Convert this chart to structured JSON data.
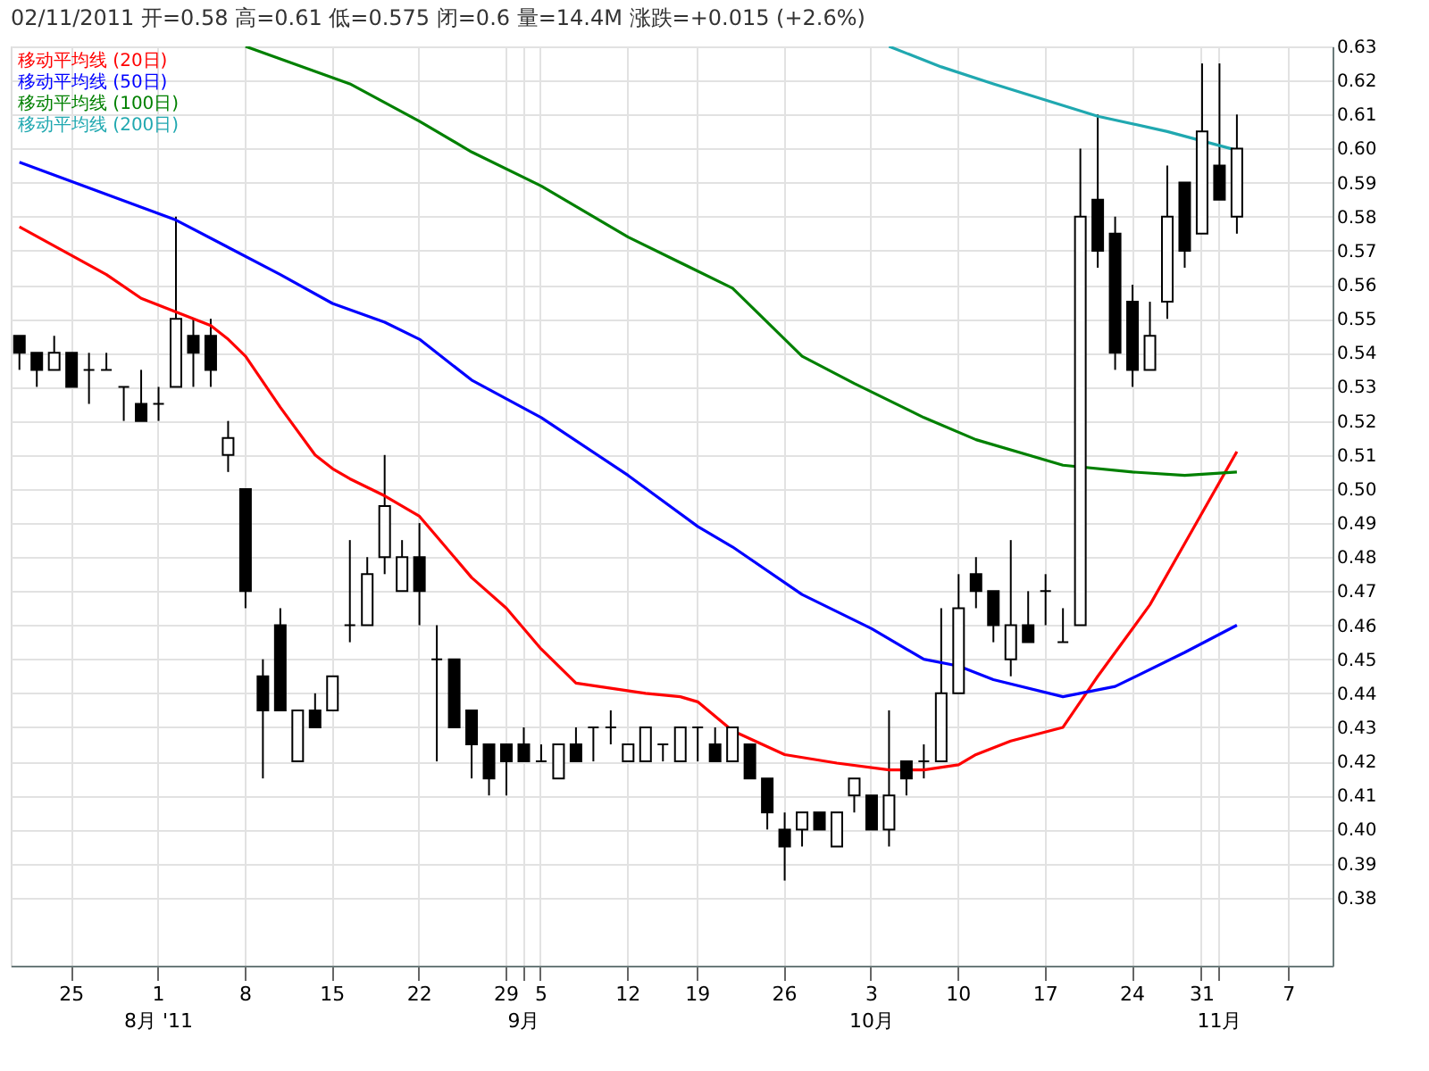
{
  "chart_data": {
    "type": "candlestick",
    "subtitle": "02/11/2011      开=0.58      高=0.61      低=0.575     闭=0.6      量=14.4M     涨跌=+0.015 (+2.6%)",
    "categories": [
      null,
      null,
      null,
      "25",
      null,
      null,
      null,
      null,
      "1\n8月 '11",
      null,
      null,
      null,
      null,
      "8",
      null,
      null,
      null,
      null,
      "15",
      null,
      null,
      null,
      null,
      "22",
      null,
      null,
      null,
      null,
      "29",
      "\n9月",
      "5",
      null,
      null,
      null,
      null,
      "12",
      null,
      null,
      null,
      "19",
      null,
      null,
      null,
      null,
      "26",
      null,
      null,
      null,
      null,
      "3\n10月",
      null,
      null,
      null,
      null,
      "10",
      null,
      null,
      null,
      null,
      "17",
      null,
      null,
      null,
      null,
      "24",
      null,
      null,
      null,
      "31",
      "\n11月",
      null,
      null,
      null,
      "7",
      null,
      null
    ],
    "ohlc": [
      [
        0.545,
        0.545,
        0.535,
        0.54
      ],
      [
        0.54,
        0.54,
        0.53,
        0.535
      ],
      [
        0.535,
        0.545,
        0.535,
        0.54
      ],
      [
        0.54,
        0.54,
        0.53,
        0.53
      ],
      [
        0.535,
        0.54,
        0.525,
        0.535
      ],
      [
        0.535,
        0.54,
        0.535,
        0.535
      ],
      [
        0.53,
        0.53,
        0.52,
        0.53
      ],
      [
        0.525,
        0.535,
        0.52,
        0.52
      ],
      [
        0.525,
        0.53,
        0.52,
        0.525
      ],
      [
        0.53,
        0.58,
        0.53,
        0.55
      ],
      [
        0.545,
        0.55,
        0.53,
        0.54
      ],
      [
        0.545,
        0.55,
        0.53,
        0.535
      ],
      [
        0.51,
        0.52,
        0.505,
        0.515
      ],
      [
        0.5,
        0.5,
        0.465,
        0.47
      ],
      [
        0.445,
        0.45,
        0.415,
        0.435
      ],
      [
        0.46,
        0.465,
        0.435,
        0.435
      ],
      [
        0.42,
        0.435,
        0.42,
        0.435
      ],
      [
        0.435,
        0.44,
        0.43,
        0.43
      ],
      [
        0.435,
        0.445,
        0.435,
        0.445
      ],
      [
        0.46,
        0.485,
        0.455,
        0.46
      ],
      [
        0.46,
        0.48,
        0.46,
        0.475
      ],
      [
        0.48,
        0.51,
        0.475,
        0.495
      ],
      [
        0.47,
        0.485,
        0.47,
        0.48
      ],
      [
        0.48,
        0.49,
        0.46,
        0.47
      ],
      [
        0.45,
        0.46,
        0.42,
        0.45
      ],
      [
        0.45,
        0.45,
        0.43,
        0.43
      ],
      [
        0.435,
        0.435,
        0.415,
        0.425
      ],
      [
        0.425,
        0.425,
        0.41,
        0.415
      ],
      [
        0.425,
        0.425,
        0.41,
        0.42
      ],
      [
        0.425,
        0.43,
        0.42,
        0.42
      ],
      [
        0.42,
        0.425,
        0.42,
        0.42
      ],
      [
        0.415,
        0.425,
        0.415,
        0.425
      ],
      [
        0.425,
        0.43,
        0.42,
        0.42
      ],
      [
        0.43,
        0.43,
        0.42,
        0.43
      ],
      [
        0.43,
        0.435,
        0.425,
        0.43
      ],
      [
        0.42,
        0.425,
        0.42,
        0.425
      ],
      [
        0.42,
        0.43,
        0.42,
        0.43
      ],
      [
        0.425,
        0.425,
        0.42,
        0.425
      ],
      [
        0.42,
        0.43,
        0.42,
        0.43
      ],
      [
        0.43,
        0.43,
        0.42,
        0.43
      ],
      [
        0.425,
        0.43,
        0.42,
        0.42
      ],
      [
        0.42,
        0.43,
        0.42,
        0.43
      ],
      [
        0.425,
        0.425,
        0.415,
        0.415
      ],
      [
        0.415,
        0.415,
        0.4,
        0.405
      ],
      [
        0.4,
        0.405,
        0.385,
        0.395
      ],
      [
        0.4,
        0.405,
        0.395,
        0.405
      ],
      [
        0.405,
        0.405,
        0.4,
        0.4
      ],
      [
        0.395,
        0.405,
        0.395,
        0.405
      ],
      [
        0.41,
        0.415,
        0.405,
        0.415
      ],
      [
        0.41,
        0.41,
        0.4,
        0.4
      ],
      [
        0.4,
        0.435,
        0.395,
        0.41
      ],
      [
        0.42,
        0.42,
        0.41,
        0.415
      ],
      [
        0.42,
        0.425,
        0.415,
        0.42
      ],
      [
        0.42,
        0.465,
        0.42,
        0.44
      ],
      [
        0.44,
        0.475,
        0.44,
        0.465
      ],
      [
        0.475,
        0.48,
        0.465,
        0.47
      ],
      [
        0.47,
        0.47,
        0.455,
        0.46
      ],
      [
        0.45,
        0.485,
        0.445,
        0.46
      ],
      [
        0.46,
        0.47,
        0.455,
        0.455
      ],
      [
        0.47,
        0.475,
        0.46,
        0.47
      ],
      [
        0.455,
        0.465,
        0.455,
        0.455
      ],
      [
        0.46,
        0.6,
        0.46,
        0.58
      ],
      [
        0.585,
        0.61,
        0.565,
        0.57
      ],
      [
        0.575,
        0.58,
        0.535,
        0.54
      ],
      [
        0.555,
        0.56,
        0.53,
        0.535
      ],
      [
        0.535,
        0.555,
        0.535,
        0.545
      ],
      [
        0.555,
        0.595,
        0.55,
        0.58
      ],
      [
        0.59,
        0.59,
        0.565,
        0.57
      ],
      [
        0.575,
        0.625,
        0.575,
        0.605
      ],
      [
        0.595,
        0.625,
        0.585,
        0.585
      ],
      [
        0.58,
        0.61,
        0.575,
        0.6
      ],
      null,
      null,
      null,
      null,
      null
    ],
    "ylim": [
      0.36,
      0.63
    ],
    "yticks": [
      0.38,
      0.39,
      {
        "value": 0.4,
        "label": "0.40"
      },
      0.41,
      0.42,
      0.43,
      0.44,
      0.45,
      0.46,
      0.47,
      0.48,
      0.49,
      {
        "value": 0.5,
        "label": "0.50"
      },
      0.51,
      0.52,
      0.53,
      0.54,
      0.55,
      0.56,
      0.57,
      0.58,
      0.59,
      {
        "value": 0.6,
        "label": "0.60"
      },
      0.61,
      0.62,
      0.63
    ],
    "grid": true,
    "legend": "top left",
    "series": [
      {
        "name": "移动平均线 (20日)",
        "type": "line",
        "color": "#ff0000",
        "values": [
          0.577,
          null,
          null,
          null,
          null,
          0.563,
          null,
          0.556,
          null,
          0.552,
          null,
          0.548,
          0.544,
          0.539,
          null,
          0.524,
          null,
          0.51,
          0.506,
          0.503,
          null,
          0.498,
          null,
          0.492,
          0.486,
          null,
          0.474,
          null,
          0.465,
          null,
          0.453,
          null,
          0.443,
          null,
          null,
          null,
          0.44,
          null,
          0.439,
          0.4375,
          null,
          0.429,
          null,
          null,
          0.422,
          null,
          null,
          0.4195,
          null,
          null,
          0.4175,
          null,
          0.4175,
          null,
          0.419,
          0.422,
          null,
          0.426,
          null,
          null,
          0.43,
          null,
          0.445,
          null,
          null,
          0.466,
          null,
          0.484,
          null,
          null,
          0.511,
          null,
          null,
          null,
          null,
          null
        ]
      },
      {
        "name": "移动平均线 (50日)",
        "type": "line",
        "color": "#0000ff",
        "values": [
          0.596,
          null,
          null,
          null,
          null,
          null,
          null,
          null,
          null,
          0.579,
          null,
          null,
          null,
          null,
          null,
          0.563,
          null,
          null,
          0.5545,
          null,
          null,
          0.549,
          null,
          0.544,
          null,
          null,
          0.532,
          null,
          null,
          null,
          0.521,
          null,
          null,
          null,
          null,
          0.504,
          null,
          null,
          null,
          0.489,
          null,
          0.483,
          null,
          null,
          null,
          0.469,
          null,
          null,
          null,
          0.459,
          null,
          null,
          0.45,
          null,
          0.448,
          null,
          0.444,
          null,
          null,
          null,
          0.439,
          null,
          null,
          0.442,
          null,
          null,
          null,
          0.452,
          null,
          null,
          0.46,
          null,
          null,
          null,
          null,
          null
        ]
      },
      {
        "name": "移动平均线 (100日)",
        "type": "line",
        "color": "#008000",
        "values": [
          null,
          null,
          null,
          null,
          null,
          null,
          null,
          null,
          null,
          null,
          null,
          null,
          null,
          0.63,
          null,
          null,
          0.6245,
          null,
          null,
          0.619,
          null,
          null,
          null,
          0.608,
          null,
          null,
          0.599,
          null,
          null,
          null,
          0.589,
          null,
          null,
          null,
          null,
          0.574,
          null,
          null,
          null,
          null,
          null,
          0.559,
          null,
          null,
          null,
          0.539,
          null,
          null,
          0.531,
          null,
          null,
          null,
          0.521,
          null,
          null,
          0.5145,
          null,
          null,
          null,
          null,
          0.507,
          null,
          null,
          null,
          0.505,
          null,
          null,
          0.504,
          null,
          null,
          0.505,
          null,
          null,
          null,
          null,
          null
        ]
      },
      {
        "name": "移动平均线 (200日)",
        "type": "line",
        "color": "#20a8b0",
        "values": [
          null,
          null,
          null,
          null,
          null,
          null,
          null,
          null,
          null,
          null,
          null,
          null,
          null,
          null,
          null,
          null,
          null,
          null,
          null,
          null,
          null,
          null,
          null,
          null,
          null,
          null,
          null,
          null,
          null,
          null,
          null,
          null,
          null,
          null,
          null,
          null,
          null,
          null,
          null,
          null,
          null,
          null,
          null,
          null,
          null,
          null,
          null,
          null,
          null,
          null,
          0.63,
          null,
          null,
          0.624,
          null,
          null,
          0.619,
          null,
          null,
          null,
          null,
          null,
          0.6095,
          null,
          null,
          null,
          0.605,
          null,
          null,
          null,
          0.5995,
          null,
          null,
          null,
          null,
          null
        ]
      }
    ]
  }
}
